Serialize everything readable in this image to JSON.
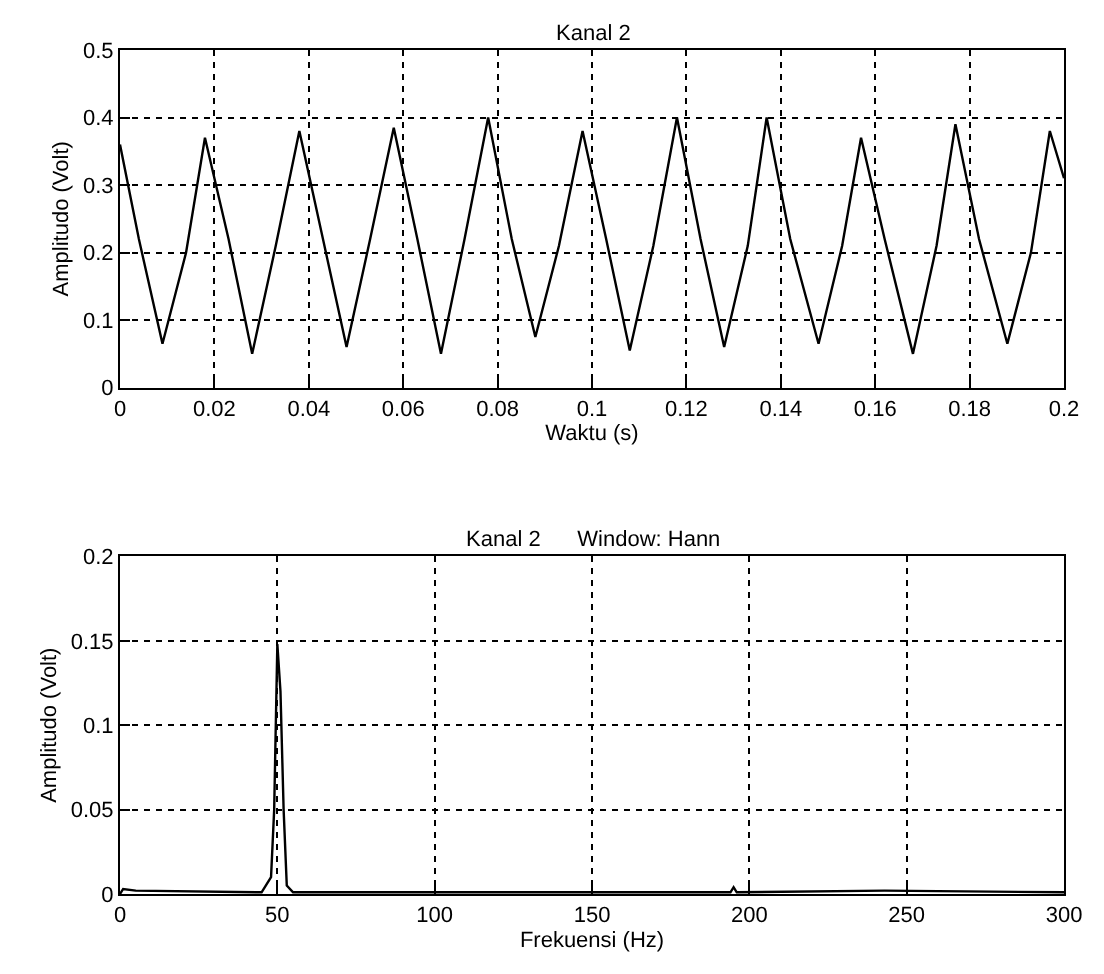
{
  "chart_data": [
    {
      "type": "line",
      "title": "Kanal 2",
      "xlabel": "Waktu (s)",
      "ylabel": "Amplitudo (Volt)",
      "xlim": [
        0,
        0.2
      ],
      "ylim": [
        0,
        0.5
      ],
      "xticks": [
        0,
        0.02,
        0.04,
        0.06,
        0.08,
        0.1,
        0.12,
        0.14,
        0.16,
        0.18,
        0.2
      ],
      "yticks": [
        0,
        0.1,
        0.2,
        0.3,
        0.4,
        0.5
      ],
      "grid": true,
      "line_style": "solid",
      "x": [
        0,
        0.004,
        0.009,
        0.014,
        0.018,
        0.023,
        0.028,
        0.033,
        0.038,
        0.043,
        0.048,
        0.053,
        0.058,
        0.063,
        0.068,
        0.073,
        0.078,
        0.083,
        0.088,
        0.093,
        0.098,
        0.103,
        0.108,
        0.113,
        0.118,
        0.123,
        0.128,
        0.133,
        0.137,
        0.142,
        0.148,
        0.153,
        0.157,
        0.162,
        0.168,
        0.173,
        0.177,
        0.182,
        0.188,
        0.193,
        0.197,
        0.2
      ],
      "series": [
        {
          "color": "#000000",
          "values": [
            0.36,
            0.22,
            0.065,
            0.2,
            0.37,
            0.22,
            0.05,
            0.21,
            0.38,
            0.22,
            0.06,
            0.22,
            0.385,
            0.22,
            0.05,
            0.22,
            0.4,
            0.22,
            0.075,
            0.21,
            0.38,
            0.22,
            0.055,
            0.21,
            0.4,
            0.22,
            0.06,
            0.21,
            0.4,
            0.22,
            0.065,
            0.21,
            0.37,
            0.22,
            0.05,
            0.21,
            0.39,
            0.22,
            0.065,
            0.2,
            0.38,
            0.31
          ]
        }
      ]
    },
    {
      "type": "line",
      "title": "Kanal 2      Window: Hann",
      "xlabel": "Frekuensi (Hz)",
      "ylabel": "Amplitudo (Volt)",
      "xlim": [
        0,
        300
      ],
      "ylim": [
        0,
        0.2
      ],
      "xticks": [
        0,
        50,
        100,
        150,
        200,
        250,
        300
      ],
      "yticks": [
        0,
        0.05,
        0.1,
        0.15,
        0.2
      ],
      "grid": true,
      "line_style": "solid",
      "x": [
        0,
        1,
        5,
        45,
        48,
        49,
        50,
        51,
        52,
        53,
        55,
        100,
        194,
        195,
        196,
        243,
        300
      ],
      "series": [
        {
          "color": "#000000",
          "values": [
            0,
            0.003,
            0.002,
            0.001,
            0.01,
            0.05,
            0.148,
            0.12,
            0.05,
            0.005,
            0.001,
            0.001,
            0.001,
            0.004,
            0.001,
            0.002,
            0.001
          ]
        }
      ]
    }
  ]
}
